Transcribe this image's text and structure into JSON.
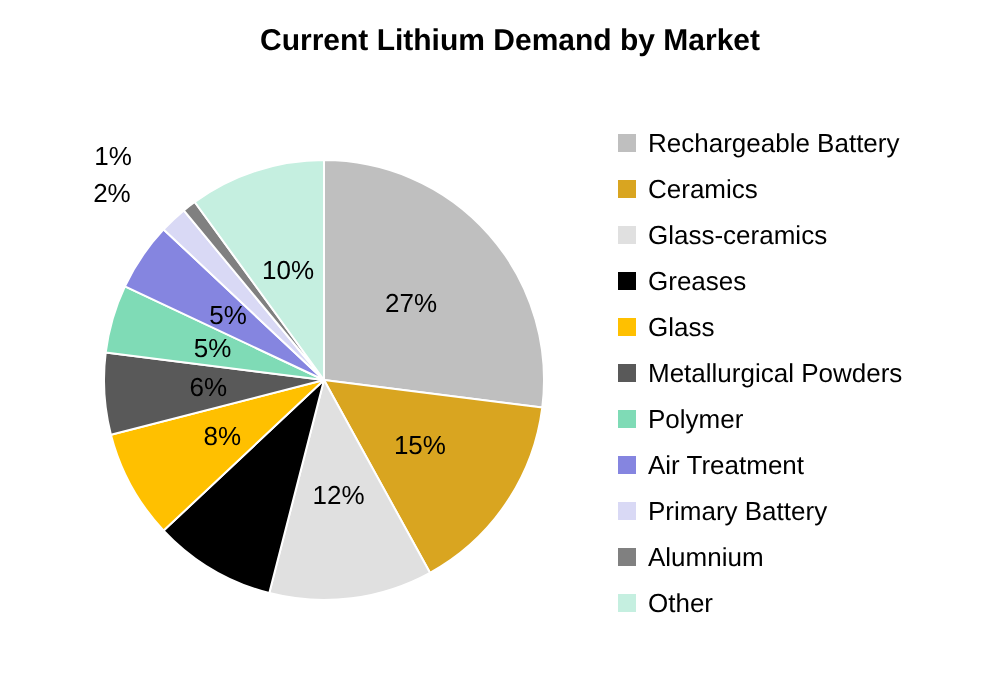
{
  "chart_data": {
    "type": "pie",
    "title": "Current Lithium Demand by Market",
    "categories": [
      "Rechargeable Battery",
      "Ceramics",
      "Glass-ceramics",
      "Greases",
      "Glass",
      "Metallurgical Powders",
      "Polymer",
      "Air Treatment",
      "Primary Battery",
      "Alumnium",
      "Other"
    ],
    "values": [
      27,
      15,
      12,
      9,
      8,
      6,
      5,
      5,
      2,
      1,
      10
    ],
    "value_labels": [
      "27%",
      "15%",
      "12%",
      null,
      "8%",
      "6%",
      "5%",
      "5%",
      "2%",
      "1%",
      "10%"
    ],
    "colors": [
      "#bfbfbf",
      "#d9a520",
      "#e0e0e0",
      "#000000",
      "#ffc000",
      "#595959",
      "#7fdbb6",
      "#8585e0",
      "#d9d9f5",
      "#808080",
      "#c5efe0"
    ],
    "legend": "right"
  }
}
